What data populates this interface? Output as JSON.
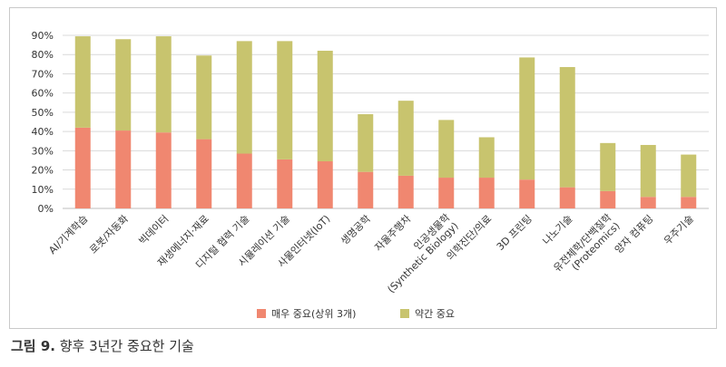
{
  "caption": {
    "prefix": "그림 9.",
    "text": "향후 3년간 중요한 기술"
  },
  "colors": {
    "very_important": "#F08770",
    "somewhat_important": "#C8C46E",
    "grid": "#d9d9d9"
  },
  "chart_data": {
    "type": "bar",
    "stacked": true,
    "title": "",
    "xlabel": "",
    "ylabel": "",
    "ylim": [
      0,
      90
    ],
    "yticks": [
      "0%",
      "10%",
      "20%",
      "30%",
      "40%",
      "50%",
      "60%",
      "70%",
      "80%",
      "90%"
    ],
    "grid": true,
    "legend_position": "bottom",
    "categories": [
      [
        "AI/기계학습"
      ],
      [
        "로봇/자동화"
      ],
      [
        "빅데이터"
      ],
      [
        "재생에너지·재료"
      ],
      [
        "디지털 협력 기술"
      ],
      [
        "시뮬레이션 기술"
      ],
      [
        "사물인터넷(IoT)"
      ],
      [
        "생명공학"
      ],
      [
        "자율주행차"
      ],
      [
        "인공생물학",
        "(Synthetic Biology)"
      ],
      [
        "의학진단/의료"
      ],
      [
        "3D 프린팅"
      ],
      [
        "나노기술"
      ],
      [
        "유전체학/단백질학",
        "(Proteomics)"
      ],
      [
        "양자 컴퓨팅"
      ],
      [
        "우주기술"
      ]
    ],
    "series": [
      {
        "name": "매우 중요(상위 3개)",
        "values": [
          42,
          40.5,
          39.5,
          36,
          28.5,
          25.5,
          24.5,
          19,
          17,
          16,
          16,
          15,
          11,
          9,
          6,
          6
        ]
      },
      {
        "name": "약간 중요",
        "values": [
          47.5,
          47.5,
          50,
          43.5,
          58.5,
          61.5,
          57.5,
          30,
          39,
          30,
          21,
          63.5,
          62.5,
          25,
          27,
          22
        ]
      }
    ]
  }
}
